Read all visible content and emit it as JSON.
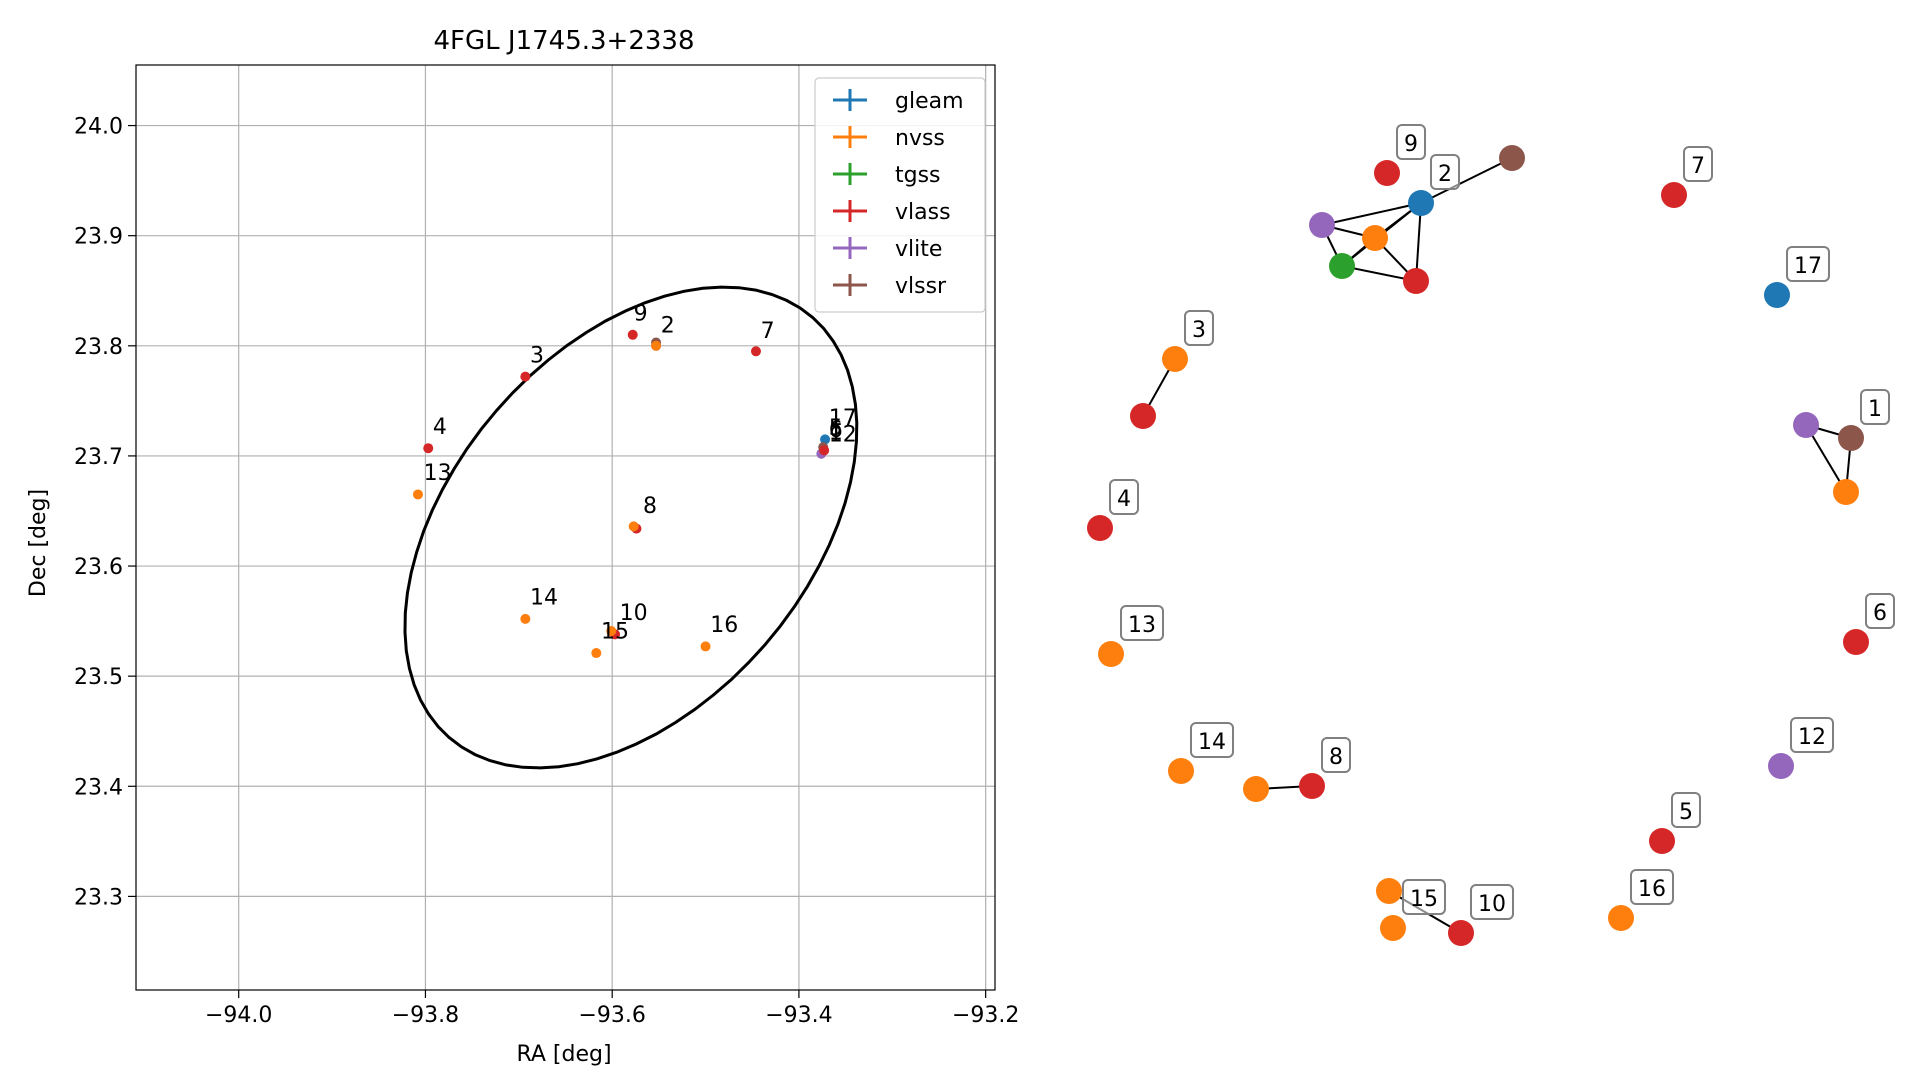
{
  "chart_data": [
    {
      "type": "scatter",
      "title": "4FGL J1745.3+2338",
      "xlabel": "RA [deg]",
      "ylabel": "Dec [deg]",
      "xlim": [
        -94.11,
        -93.19
      ],
      "ylim": [
        23.215,
        24.055
      ],
      "xticks": [
        -94.0,
        -93.8,
        -93.6,
        -93.4,
        -93.2
      ],
      "xtick_labels": [
        "−94.0",
        "−93.8",
        "−93.6",
        "−93.4",
        "−93.2"
      ],
      "yticks": [
        23.3,
        23.4,
        23.5,
        23.6,
        23.7,
        23.8,
        23.9,
        24.0
      ],
      "ytick_labels": [
        "23.3",
        "23.4",
        "23.5",
        "23.6",
        "23.7",
        "23.8",
        "23.9",
        "24.0"
      ],
      "grid": true,
      "legend_position": "top-right",
      "legend": [
        {
          "label": "gleam",
          "color": "#1f77b4"
        },
        {
          "label": "nvss",
          "color": "#ff7f0e"
        },
        {
          "label": "tgss",
          "color": "#2ca02c"
        },
        {
          "label": "vlass",
          "color": "#d62728"
        },
        {
          "label": "vlite",
          "color": "#9467bd"
        },
        {
          "label": "vlssr",
          "color": "#8c564b"
        }
      ],
      "ellipse": {
        "center_ra": -93.58,
        "center_dec": 23.635,
        "semi_major_deg": 0.275,
        "semi_minor_deg": 0.175,
        "angle_deg": 38
      },
      "points": [
        {
          "survey": "vlite",
          "ra": -93.553,
          "dec": 23.8
        },
        {
          "survey": "vlssr",
          "ra": -93.553,
          "dec": 23.803
        },
        {
          "survey": "nvss",
          "ra": -93.553,
          "dec": 23.8
        },
        {
          "survey": "vlass",
          "ra": -93.578,
          "dec": 23.81
        },
        {
          "survey": "vlass",
          "ra": -93.446,
          "dec": 23.795
        },
        {
          "survey": "vlass",
          "ra": -93.693,
          "dec": 23.772
        },
        {
          "survey": "vlass",
          "ra": -93.797,
          "dec": 23.707
        },
        {
          "survey": "nvss",
          "ra": -93.808,
          "dec": 23.665
        },
        {
          "survey": "vlass",
          "ra": -93.574,
          "dec": 23.634
        },
        {
          "survey": "nvss",
          "ra": -93.577,
          "dec": 23.636
        },
        {
          "survey": "nvss",
          "ra": -93.693,
          "dec": 23.552
        },
        {
          "survey": "nvss",
          "ra": -93.617,
          "dec": 23.521
        },
        {
          "survey": "vlass",
          "ra": -93.597,
          "dec": 23.538
        },
        {
          "survey": "nvss",
          "ra": -93.601,
          "dec": 23.541
        },
        {
          "survey": "nvss",
          "ra": -93.5,
          "dec": 23.527
        },
        {
          "survey": "gleam",
          "ra": -93.372,
          "dec": 23.715
        },
        {
          "survey": "vlite",
          "ra": -93.376,
          "dec": 23.702
        },
        {
          "survey": "vlssr",
          "ra": -93.374,
          "dec": 23.708
        },
        {
          "survey": "vlass",
          "ra": -93.373,
          "dec": 23.705
        }
      ],
      "labels": [
        {
          "text": "9",
          "ra": -93.577,
          "dec": 23.823
        },
        {
          "text": "2",
          "ra": -93.548,
          "dec": 23.812
        },
        {
          "text": "7",
          "ra": -93.441,
          "dec": 23.807
        },
        {
          "text": "3",
          "ra": -93.688,
          "dec": 23.785
        },
        {
          "text": "4",
          "ra": -93.792,
          "dec": 23.72
        },
        {
          "text": "13",
          "ra": -93.802,
          "dec": 23.678
        },
        {
          "text": "8",
          "ra": -93.567,
          "dec": 23.648
        },
        {
          "text": "14",
          "ra": -93.688,
          "dec": 23.565
        },
        {
          "text": "10",
          "ra": -93.592,
          "dec": 23.551
        },
        {
          "text": "15",
          "ra": -93.612,
          "dec": 23.534
        },
        {
          "text": "16",
          "ra": -93.495,
          "dec": 23.54
        },
        {
          "text": "17",
          "ra": -93.368,
          "dec": 23.728
        },
        {
          "text": "5",
          "ra": -93.368,
          "dec": 23.719
        },
        {
          "text": "6",
          "ra": -93.368,
          "dec": 23.717
        },
        {
          "text": "1",
          "ra": -93.368,
          "dec": 23.715
        },
        {
          "text": "12",
          "ra": -93.368,
          "dec": 23.713
        }
      ]
    },
    {
      "type": "network",
      "nodes": [
        {
          "id": "n1",
          "color": "#9467bd",
          "label": ""
        },
        {
          "id": "n2",
          "color": "#8c564b",
          "label": "1"
        },
        {
          "id": "n3",
          "color": "#ff7f0e",
          "label": ""
        },
        {
          "id": "n4",
          "color": "#1f77b4",
          "label": "2"
        },
        {
          "id": "n5",
          "color": "#8c564b",
          "label": ""
        },
        {
          "id": "n6",
          "color": "#9467bd",
          "label": ""
        },
        {
          "id": "n7",
          "color": "#ff7f0e",
          "label": ""
        },
        {
          "id": "n8",
          "color": "#2ca02c",
          "label": ""
        },
        {
          "id": "n9",
          "color": "#d62728",
          "label": ""
        },
        {
          "id": "n10",
          "color": "#d62728",
          "label": "9"
        },
        {
          "id": "n11",
          "color": "#d62728",
          "label": "7"
        },
        {
          "id": "n12",
          "color": "#1f77b4",
          "label": "17"
        },
        {
          "id": "n13",
          "color": "#ff7f0e",
          "label": "3"
        },
        {
          "id": "n14",
          "color": "#d62728",
          "label": ""
        },
        {
          "id": "n15",
          "color": "#d62728",
          "label": "4"
        },
        {
          "id": "n16",
          "color": "#d62728",
          "label": "6"
        },
        {
          "id": "n17",
          "color": "#ff7f0e",
          "label": "13"
        },
        {
          "id": "n18",
          "color": "#9467bd",
          "label": "12"
        },
        {
          "id": "n19",
          "color": "#ff7f0e",
          "label": "14"
        },
        {
          "id": "n20",
          "color": "#ff7f0e",
          "label": ""
        },
        {
          "id": "n21",
          "color": "#d62728",
          "label": "8"
        },
        {
          "id": "n22",
          "color": "#d62728",
          "label": "5"
        },
        {
          "id": "n23",
          "color": "#ff7f0e",
          "label": ""
        },
        {
          "id": "n24",
          "color": "#ff7f0e",
          "label": "15"
        },
        {
          "id": "n25",
          "color": "#d62728",
          "label": "10"
        },
        {
          "id": "n26",
          "color": "#ff7f0e",
          "label": "16"
        }
      ],
      "edges": [
        [
          "n1",
          "n2"
        ],
        [
          "n1",
          "n3"
        ],
        [
          "n2",
          "n3"
        ],
        [
          "n4",
          "n5"
        ],
        [
          "n4",
          "n6"
        ],
        [
          "n4",
          "n7"
        ],
        [
          "n4",
          "n9"
        ],
        [
          "n4",
          "n8"
        ],
        [
          "n6",
          "n7"
        ],
        [
          "n6",
          "n8"
        ],
        [
          "n7",
          "n8"
        ],
        [
          "n7",
          "n9"
        ],
        [
          "n8",
          "n9"
        ],
        [
          "n13",
          "n14"
        ],
        [
          "n20",
          "n21"
        ],
        [
          "n23",
          "n25"
        ]
      ]
    }
  ]
}
